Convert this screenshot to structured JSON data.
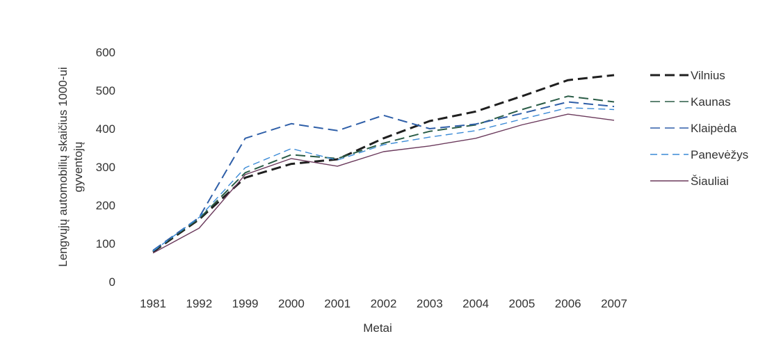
{
  "chart_data": {
    "type": "line",
    "categories": [
      "1981",
      "1992",
      "1999",
      "2000",
      "2001",
      "2002",
      "2003",
      "2004",
      "2005",
      "2006",
      "2007"
    ],
    "xlabel": "Metai",
    "ylabel_line1": "Lengvųjų automobilių skaičius 1000-ui",
    "ylabel_line2": "gyventojų",
    "ylim": [
      0,
      600
    ],
    "yticks": [
      "0",
      "100",
      "200",
      "300",
      "400",
      "500",
      "600"
    ],
    "legend_position": "right",
    "grid": false,
    "series": [
      {
        "name": "Vilnius",
        "color": "#1f1f1f",
        "dash": "long",
        "values": [
          78,
          163,
          272,
          308,
          320,
          375,
          420,
          445,
          485,
          527,
          540
        ]
      },
      {
        "name": "Kaunas",
        "color": "#2a5c46",
        "dash": "long",
        "values": [
          80,
          165,
          285,
          332,
          322,
          362,
          393,
          410,
          450,
          485,
          470
        ]
      },
      {
        "name": "Klaipėda",
        "color": "#2f5fa8",
        "dash": "long",
        "values": [
          82,
          168,
          375,
          413,
          395,
          435,
          400,
          412,
          440,
          470,
          458
        ]
      },
      {
        "name": "Panevėžys",
        "color": "#3a8ad6",
        "dash": "medium",
        "values": [
          80,
          168,
          298,
          348,
          318,
          358,
          378,
          395,
          425,
          455,
          450
        ]
      },
      {
        "name": "Šiauliai",
        "color": "#6b3a5c",
        "dash": "solid",
        "values": [
          75,
          140,
          280,
          322,
          302,
          340,
          355,
          375,
          410,
          438,
          422
        ]
      }
    ]
  }
}
